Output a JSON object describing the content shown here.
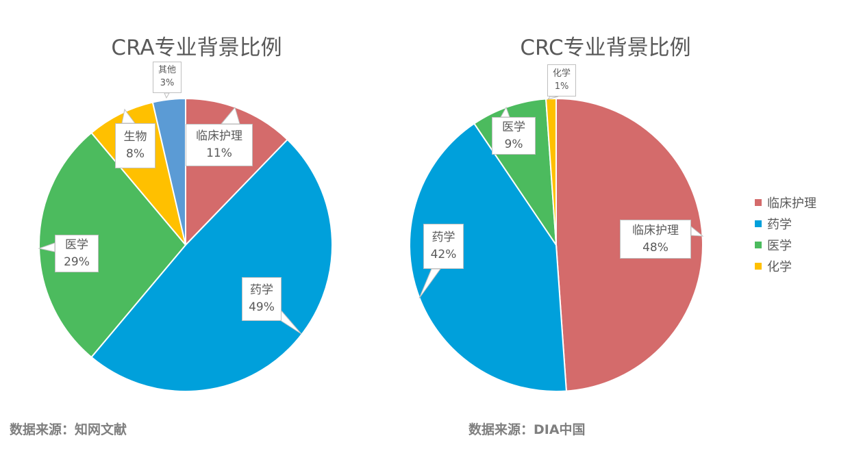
{
  "colors": {
    "nursing": "#D46B6B",
    "pharmacy": "#00A0DB",
    "medicine": "#4CBB5E",
    "biology": "#FFC000",
    "chemistry": "#FFC000",
    "other": "#5B9BD5"
  },
  "left": {
    "title": "CRA专业背景比例",
    "source": "数据来源：知网文献"
  },
  "right": {
    "title": "CRC专业背景比例",
    "source": "数据来源：DIA中国"
  },
  "legend": [
    {
      "label": "临床护理",
      "color": "#D46B6B"
    },
    {
      "label": "药学",
      "color": "#00A0DB"
    },
    {
      "label": "医学",
      "color": "#4CBB5E"
    },
    {
      "label": "化学",
      "color": "#FFC000"
    }
  ],
  "labels": {
    "cra_nursing": {
      "name": "临床护理",
      "pct": "11%"
    },
    "cra_pharmacy": {
      "name": "药学",
      "pct": "49%"
    },
    "cra_medicine": {
      "name": "医学",
      "pct": "29%"
    },
    "cra_biology": {
      "name": "生物",
      "pct": "8%"
    },
    "cra_other": {
      "name": "其他",
      "pct": "3%"
    },
    "crc_nursing": {
      "name": "临床护理",
      "pct": "48%"
    },
    "crc_pharmacy": {
      "name": "药学",
      "pct": "42%"
    },
    "crc_medicine": {
      "name": "医学",
      "pct": "9%"
    },
    "crc_chemistry": {
      "name": "化学",
      "pct": "1%"
    }
  },
  "chart_data": [
    {
      "type": "pie",
      "title": "CRA专业背景比例",
      "categories": [
        "临床护理",
        "药学",
        "医学",
        "生物",
        "其他"
      ],
      "values": [
        11,
        49,
        29,
        8,
        3
      ],
      "value_labels": [
        "11%",
        "49%",
        "29%",
        "8%",
        "3%"
      ],
      "colors": [
        "#D46B6B",
        "#00A0DB",
        "#4CBB5E",
        "#FFC000",
        "#5B9BD5"
      ],
      "slice_end_angles_deg": [
        44,
        220,
        320,
        347,
        360
      ],
      "source_note": "数据来源：知网文献",
      "legend": false
    },
    {
      "type": "pie",
      "title": "CRC专业背景比例",
      "categories": [
        "临床护理",
        "药学",
        "医学",
        "化学"
      ],
      "values": [
        48,
        42,
        9,
        1
      ],
      "value_labels": [
        "48%",
        "42%",
        "9%",
        "1%"
      ],
      "colors": [
        "#D46B6B",
        "#00A0DB",
        "#4CBB5E",
        "#FFC000"
      ],
      "slice_end_angles_deg": [
        176,
        326,
        356,
        360
      ],
      "source_note": "数据来源：DIA中国",
      "legend": true,
      "legend_position": "right"
    }
  ]
}
